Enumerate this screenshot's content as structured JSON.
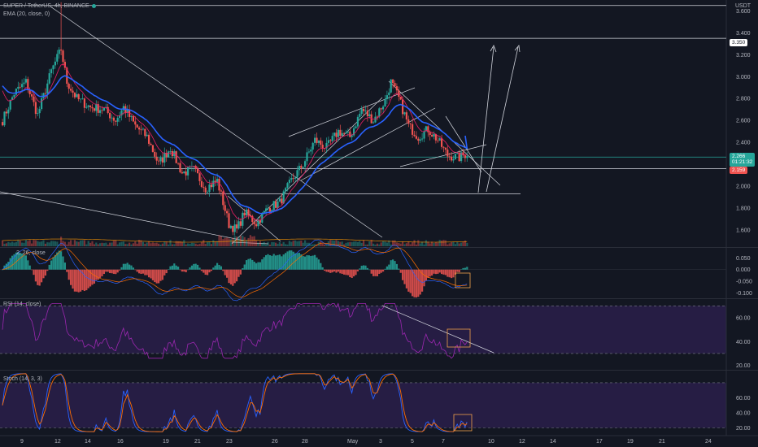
{
  "header": {
    "symbol_line": "SUPER / TetherUS, 4h, BINANCE",
    "ema_line": "EMA (20, close, 0)",
    "currency": "USDT"
  },
  "panes": {
    "macd_label": "2, 26, close",
    "rsi_label": "RSI (14, close)",
    "stoch_label": "Stoch (14, 3, 3)"
  },
  "price_labels": {
    "target": "3.350",
    "current": "2.266",
    "countdown": "01:21:32",
    "low": "2.159"
  },
  "colors": {
    "background": "#131722",
    "up": "#26a69a",
    "down": "#ef5350",
    "ema": "#2962ff",
    "ma_short": "#e91e63",
    "rsi": "#9c27b0",
    "stoch_k": "#2962ff",
    "stoch_d": "#ff6d00",
    "pane_fill": "#2a1e4a"
  },
  "chart_data": {
    "type": "candlestick",
    "timeframe": "4h",
    "x_ticks": [
      "9",
      "12",
      "14",
      "16",
      "19",
      "21",
      "23",
      "26",
      "28",
      "May",
      "3",
      "5",
      "7",
      "10",
      "12",
      "14",
      "17",
      "19",
      "21",
      "24"
    ],
    "price_axis": {
      "ticks": [
        "3.600",
        "3.400",
        "3.200",
        "3.000",
        "2.800",
        "2.600",
        "2.400",
        "2.200",
        "2.000",
        "1.800",
        "1.600"
      ],
      "range": [
        1.45,
        3.7
      ]
    },
    "macd_axis": {
      "ticks": [
        "0.050",
        "0.000",
        "-0.050",
        "-0.100"
      ],
      "range": [
        -0.12,
        0.09
      ]
    },
    "rsi_axis": {
      "ticks": [
        "60.00",
        "40.00",
        "20.00"
      ],
      "range": [
        17,
        75
      ],
      "bands": [
        70,
        30
      ]
    },
    "stoch_axis": {
      "ticks": [
        "60.00",
        "40.00",
        "20.00"
      ],
      "range": [
        13,
        95
      ],
      "bands": [
        80,
        20
      ]
    },
    "anchors": [
      [
        0,
        2.6
      ],
      [
        6,
        2.85
      ],
      [
        12,
        2.95
      ],
      [
        18,
        2.65
      ],
      [
        25,
        3.05
      ],
      [
        30,
        3.25
      ],
      [
        33,
        2.95
      ],
      [
        38,
        2.8
      ],
      [
        45,
        2.72
      ],
      [
        52,
        2.7
      ],
      [
        58,
        2.6
      ],
      [
        62,
        2.72
      ],
      [
        68,
        2.55
      ],
      [
        74,
        2.45
      ],
      [
        80,
        2.2
      ],
      [
        86,
        2.35
      ],
      [
        92,
        2.12
      ],
      [
        98,
        2.15
      ],
      [
        104,
        1.98
      ],
      [
        110,
        2.05
      ],
      [
        116,
        1.65
      ],
      [
        120,
        1.6
      ],
      [
        124,
        1.76
      ],
      [
        130,
        1.66
      ],
      [
        136,
        1.8
      ],
      [
        142,
        1.85
      ],
      [
        148,
        2.05
      ],
      [
        154,
        2.2
      ],
      [
        160,
        2.42
      ],
      [
        166,
        2.35
      ],
      [
        172,
        2.5
      ],
      [
        178,
        2.45
      ],
      [
        184,
        2.7
      ],
      [
        190,
        2.6
      ],
      [
        196,
        2.78
      ],
      [
        199,
        2.95
      ],
      [
        203,
        2.8
      ],
      [
        208,
        2.55
      ],
      [
        213,
        2.45
      ],
      [
        218,
        2.52
      ],
      [
        223,
        2.42
      ],
      [
        228,
        2.28
      ],
      [
        234,
        2.26
      ],
      [
        238,
        2.3
      ]
    ],
    "ema_start": 2.95,
    "ma_start": 2.95
  }
}
